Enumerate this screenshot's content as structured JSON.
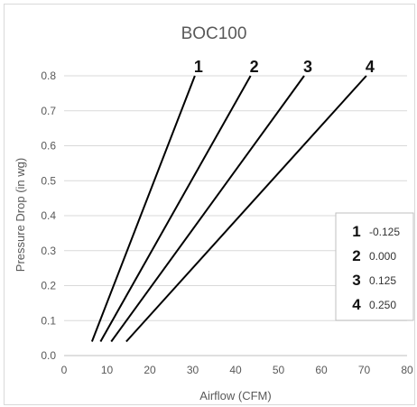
{
  "chart_data": {
    "type": "line",
    "title": "BOC100",
    "xlabel": "Airflow (CFM)",
    "ylabel": "Pressure Drop (in wg)",
    "xlim": [
      0,
      80
    ],
    "ylim": [
      0,
      0.8
    ],
    "x_ticks": [
      "0",
      "10",
      "20",
      "30",
      "40",
      "50",
      "60",
      "70",
      "80"
    ],
    "y_ticks": [
      "0.0",
      "0.1",
      "0.2",
      "0.3",
      "0.4",
      "0.5",
      "0.6",
      "0.7",
      "0.8"
    ],
    "grid": "horizontal",
    "legend_position": "right",
    "series": [
      {
        "name": "1",
        "legend_value": "-0.125",
        "x": [
          6.5,
          30.5
        ],
        "y": [
          0.04,
          0.8
        ]
      },
      {
        "name": "2",
        "legend_value": "0.000",
        "x": [
          8.5,
          43.5
        ],
        "y": [
          0.04,
          0.8
        ]
      },
      {
        "name": "3",
        "legend_value": "0.125",
        "x": [
          11,
          56
        ],
        "y": [
          0.04,
          0.8
        ]
      },
      {
        "name": "4",
        "legend_value": "0.250",
        "x": [
          14.5,
          70.5
        ],
        "y": [
          0.04,
          0.8
        ]
      }
    ],
    "colors": {
      "line": "#000000",
      "grid": "#d9d9d9",
      "text": "#595959"
    }
  }
}
